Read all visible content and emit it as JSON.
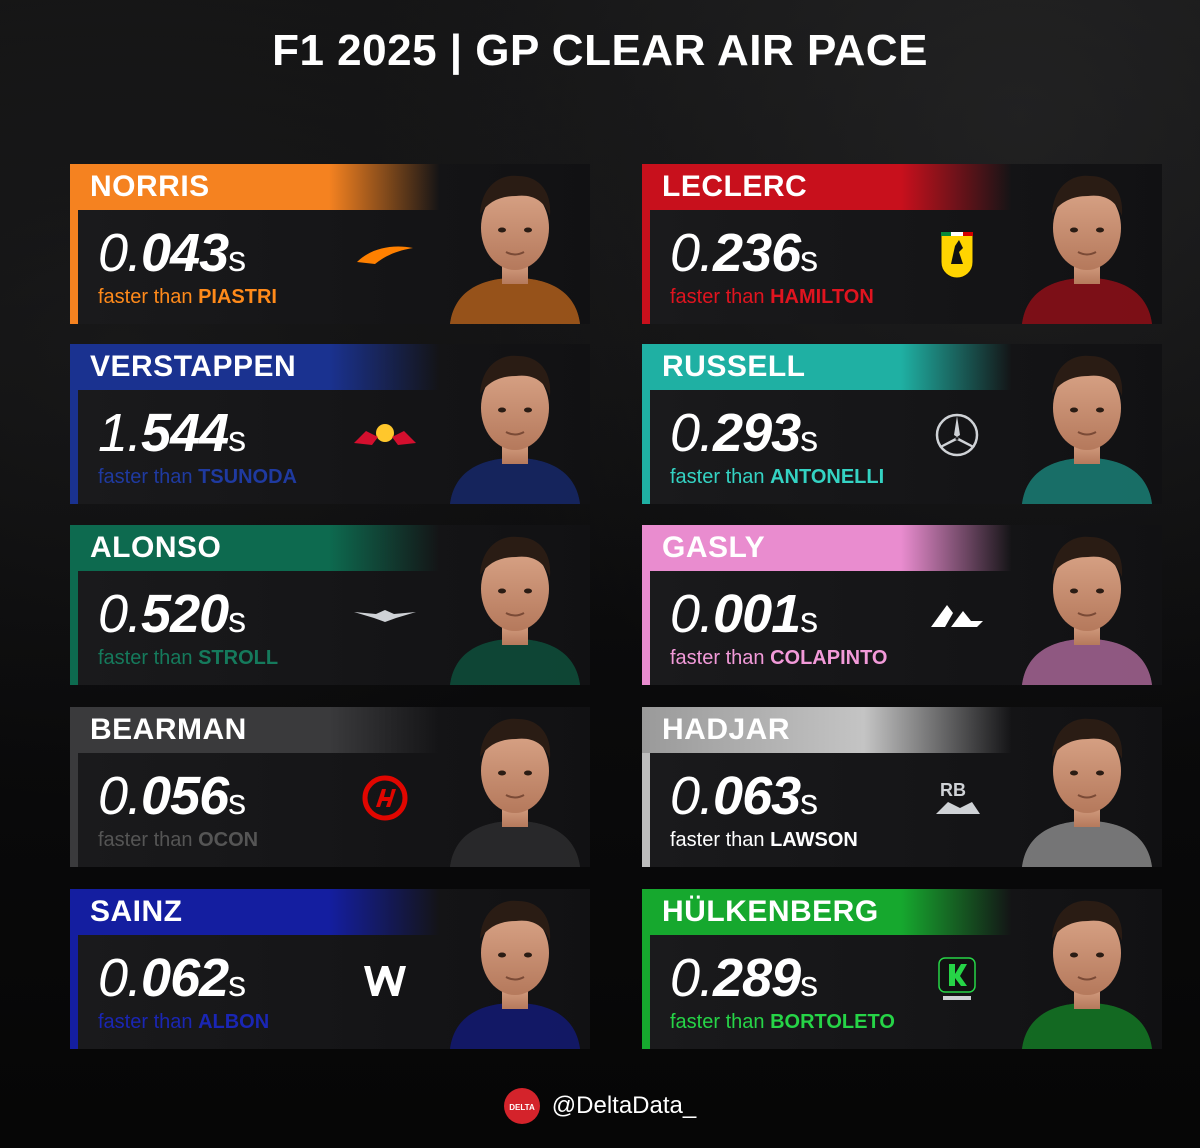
{
  "title": "F1 2025 | GP CLEAR AIR PACE",
  "footer": {
    "handle": "@DeltaData_",
    "badge_text": "DELTA"
  },
  "cards": [
    {
      "name": "NORRIS",
      "gap_lead": "0.",
      "gap_digits": "043",
      "unit": "s",
      "prefix": "faster than",
      "rival": "PIASTRI",
      "accent": "#ff8000",
      "sub_color": "#ff8a1a",
      "bar": "#f58220",
      "team_icon": "mclaren-logo-icon"
    },
    {
      "name": "LECLERC",
      "gap_lead": "0.",
      "gap_digits": "236",
      "unit": "s",
      "prefix": "faster than",
      "rival": "HAMILTON",
      "accent": "#dc0000",
      "sub_color": "#e0141f",
      "bar": "#c8101c",
      "team_icon": "ferrari-logo-icon"
    },
    {
      "name": "VERSTAPPEN",
      "gap_lead": "1.",
      "gap_digits": "544",
      "unit": "s",
      "prefix": "faster than",
      "rival": "TSUNODA",
      "accent": "#1e3fa8",
      "sub_color": "#1f3aa0",
      "bar": "#1a3290",
      "team_icon": "red-bull-logo-icon"
    },
    {
      "name": "RUSSELL",
      "gap_lead": "0.",
      "gap_digits": "293",
      "unit": "s",
      "prefix": "faster than",
      "rival": "ANTONELLI",
      "accent": "#2ec4b6",
      "sub_color": "#34d3c3",
      "bar": "#1fb0a3",
      "team_icon": "mercedes-logo-icon"
    },
    {
      "name": "ALONSO",
      "gap_lead": "0.",
      "gap_digits": "520",
      "unit": "s",
      "prefix": "faster than",
      "rival": "STROLL",
      "accent": "#0f6e52",
      "sub_color": "#157a5c",
      "bar": "#0d6a4f",
      "team_icon": "aston-martin-logo-icon"
    },
    {
      "name": "GASLY",
      "gap_lead": "0.",
      "gap_digits": "001",
      "unit": "s",
      "prefix": "faster than",
      "rival": "COLAPINTO",
      "accent": "#f38ad8",
      "sub_color": "#f29ad9",
      "bar": "#e98ccf",
      "team_icon": "alpine-logo-icon"
    },
    {
      "name": "BEARMAN",
      "gap_lead": "0.",
      "gap_digits": "056",
      "unit": "s",
      "prefix": "faster than",
      "rival": "OCON",
      "accent": "#3a3a3a",
      "sub_color": "#555555",
      "bar": "#3a3a3c",
      "team_icon": "haas-logo-icon"
    },
    {
      "name": "HADJAR",
      "gap_lead": "0.",
      "gap_digits": "063",
      "unit": "s",
      "prefix": "faster than",
      "rival": "LAWSON",
      "accent": "#ffffff",
      "sub_color": "#ffffff",
      "bar": "#bdbdbd",
      "team_icon": "racing-bulls-logo-icon"
    },
    {
      "name": "SAINZ",
      "gap_lead": "0.",
      "gap_digits": "062",
      "unit": "s",
      "prefix": "faster than",
      "rival": "ALBON",
      "accent": "#1622a8",
      "sub_color": "#1a26b4",
      "bar": "#141ea0",
      "team_icon": "williams-logo-icon"
    },
    {
      "name": "HÜLKENBERG",
      "gap_lead": "0.",
      "gap_digits": "289",
      "unit": "s",
      "prefix": "faster than",
      "rival": "BORTOLETO",
      "accent": "#1fc13a",
      "sub_color": "#26d447",
      "bar": "#16a82e",
      "team_icon": "sauber-logo-icon"
    }
  ]
}
